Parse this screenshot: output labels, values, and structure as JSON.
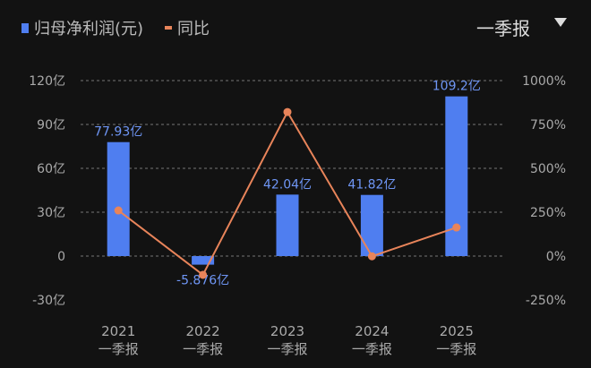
{
  "legend": {
    "bar_label": "归母净利润(元)",
    "line_label": "同比"
  },
  "period_selector": {
    "value": "一季报"
  },
  "colors": {
    "bar": "#4f7ef0",
    "line": "#e8845a",
    "bar_label": "#6f96f5",
    "axis_text": "#aaaaaa"
  },
  "chart_data": {
    "type": "bar+line",
    "categories": [
      "2021",
      "2022",
      "2023",
      "2024",
      "2025"
    ],
    "category_sublabel": "一季报",
    "series": [
      {
        "name": "归母净利润(元)",
        "type": "bar",
        "axis": "left",
        "values": [
          77.93,
          -5.876,
          42.04,
          41.82,
          109.2
        ],
        "labels": [
          "77.93亿",
          "-5.876亿",
          "42.04亿",
          "41.82亿",
          "109.2亿"
        ]
      },
      {
        "name": "同比",
        "type": "line",
        "axis": "right",
        "values": [
          260,
          -107,
          821,
          -1,
          163
        ]
      }
    ],
    "y_left": {
      "ticks": [
        "120亿",
        "90亿",
        "60亿",
        "30亿",
        "0",
        "-30亿"
      ],
      "tick_values": [
        120,
        90,
        60,
        30,
        0,
        -30
      ],
      "range": [
        -30,
        120
      ]
    },
    "y_right": {
      "ticks": [
        "1000%",
        "750%",
        "500%",
        "250%",
        "0%",
        "-250%"
      ],
      "tick_values": [
        1000,
        750,
        500,
        250,
        0,
        -250
      ],
      "range": [
        -250,
        1000
      ]
    },
    "grid": true,
    "legend": "top-left"
  }
}
